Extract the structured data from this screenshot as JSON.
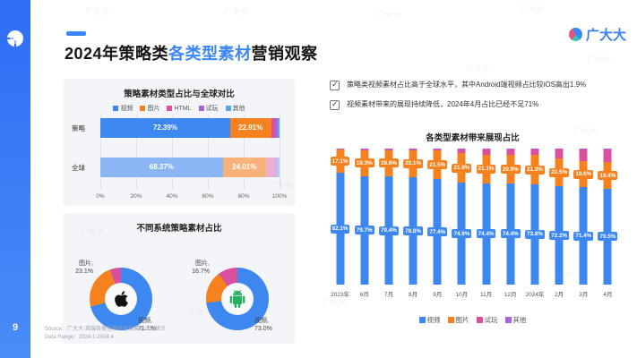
{
  "header": {
    "title_parts": [
      "2024年策略类",
      "各类型素材",
      "营销观察"
    ],
    "brand": "广大大",
    "accent_color": "#3a86f7"
  },
  "watermark": {
    "text": "广大大"
  },
  "insights": [
    {
      "text": "策略类视频素材占比高于全球水平，其中Android端视频占比较iOS高出1.9%"
    },
    {
      "text": "视频素材带来的展现持续降低，2024年4月占比已经不足71%"
    }
  ],
  "chart_data": [
    {
      "type": "bar",
      "title": "策略素材类型占比与全球对比",
      "orientation": "horizontal",
      "stacked": true,
      "unit": "%",
      "xlim": [
        0,
        100
      ],
      "grid": true,
      "x_ticks": [
        "0%",
        "20%",
        "40%",
        "60%",
        "80%",
        "100%"
      ],
      "categories": [
        "策略",
        "全球"
      ],
      "legend": [
        "视频",
        "图片",
        "HTML",
        "试玩",
        "其他"
      ],
      "legend_colors": [
        "#3d87f0",
        "#f5821f",
        "#d9519e",
        "#a964d8",
        "#58a7e8"
      ],
      "series": [
        {
          "name": "视频",
          "values": [
            72.39,
            68.37
          ],
          "labels": [
            "72.39%",
            "68.37%"
          ],
          "colors": [
            "#3d87f0",
            "#8ab7f3"
          ]
        },
        {
          "name": "图片",
          "values": [
            22.91,
            24.01
          ],
          "labels": [
            "22.91%",
            "24.01%"
          ],
          "colors": [
            "#f5821f",
            "#f7b27c"
          ]
        },
        {
          "name": "HTML",
          "values": [
            2.3,
            4.5
          ],
          "labels": [
            "",
            ""
          ],
          "colors": [
            "#d9519e",
            "#e9aed2"
          ]
        },
        {
          "name": "试玩",
          "values": [
            1.4,
            2.0
          ],
          "labels": [
            "",
            ""
          ],
          "colors": [
            "#a964d8",
            "#d2b0e8"
          ]
        },
        {
          "name": "其他",
          "values": [
            1.0,
            1.12
          ],
          "labels": [
            "",
            ""
          ],
          "colors": [
            "#58a7e8",
            "#abd3f0"
          ]
        }
      ]
    },
    {
      "type": "pie",
      "title": "不同系统策略素材占比",
      "donuts": [
        {
          "os": "iOS",
          "icon": "apple",
          "slices": [
            {
              "name": "视频",
              "value": 71.1,
              "color": "#3d87f0"
            },
            {
              "name": "图片",
              "value": 23.1,
              "color": "#f5821f"
            },
            {
              "name": "HTML",
              "value": 5.8,
              "color": "#d9519e"
            }
          ],
          "labels": [
            {
              "name": "图片,",
              "value": "23.1%",
              "pos": "tl"
            },
            {
              "name": "视频,",
              "value": "71.1%",
              "pos": "br"
            }
          ]
        },
        {
          "os": "Android",
          "icon": "android",
          "slices": [
            {
              "name": "视频",
              "value": 73.0,
              "color": "#3d87f0"
            },
            {
              "name": "图片",
              "value": 16.7,
              "color": "#f5821f"
            },
            {
              "name": "HTML",
              "value": 10.3,
              "color": "#d9519e"
            }
          ],
          "labels": [
            {
              "name": "图片,",
              "value": "16.7%",
              "pos": "tl"
            },
            {
              "name": "视频,",
              "value": "73.0%",
              "pos": "br"
            }
          ]
        }
      ]
    },
    {
      "type": "bar",
      "title": "各类型素材带来展现占比",
      "stacked": true,
      "unit": "%",
      "ylim": [
        0,
        100
      ],
      "legend_position": "bottom",
      "categories": [
        "2023年",
        "6月",
        "7月",
        "8月",
        "9月",
        "10月",
        "11月",
        "12月",
        "2024年",
        "2月",
        "3月",
        "4月"
      ],
      "legend": [
        "视频",
        "图片",
        "试玩",
        "其他"
      ],
      "legend_colors": [
        "#3d87f0",
        "#f5821f",
        "#d9519e",
        "#a964d8"
      ],
      "series": [
        {
          "name": "视频",
          "color": "#3d87f0",
          "show_labels": true,
          "values": [
            82.1,
            79.7,
            79.4,
            78.8,
            77.4,
            74.9,
            74.4,
            74.4,
            73.8,
            72.2,
            71.4,
            70.5
          ]
        },
        {
          "name": "图片",
          "color": "#f5821f",
          "show_labels": true,
          "values": [
            17.1,
            19.3,
            19.6,
            20.1,
            21.5,
            21.9,
            21.1,
            20.9,
            21.3,
            20.5,
            19.6,
            19.4
          ]
        },
        {
          "name": "试玩",
          "color": "#d9519e",
          "show_labels": false,
          "values": [
            0.6,
            0.8,
            0.8,
            0.9,
            0.9,
            2.8,
            4.0,
            4.2,
            4.4,
            6.6,
            8.2,
            9.2
          ]
        },
        {
          "name": "其他",
          "color": "#a964d8",
          "show_labels": false,
          "values": [
            0.2,
            0.2,
            0.2,
            0.2,
            0.2,
            0.4,
            0.5,
            0.5,
            0.5,
            0.7,
            0.8,
            0.9
          ]
        }
      ]
    }
  ],
  "footer": {
    "page_number": "9",
    "source_line1": "Source：广大大-双端各类型素材全球展现占比统计",
    "source_line2": "Data Range：2024.1-2024.4"
  }
}
